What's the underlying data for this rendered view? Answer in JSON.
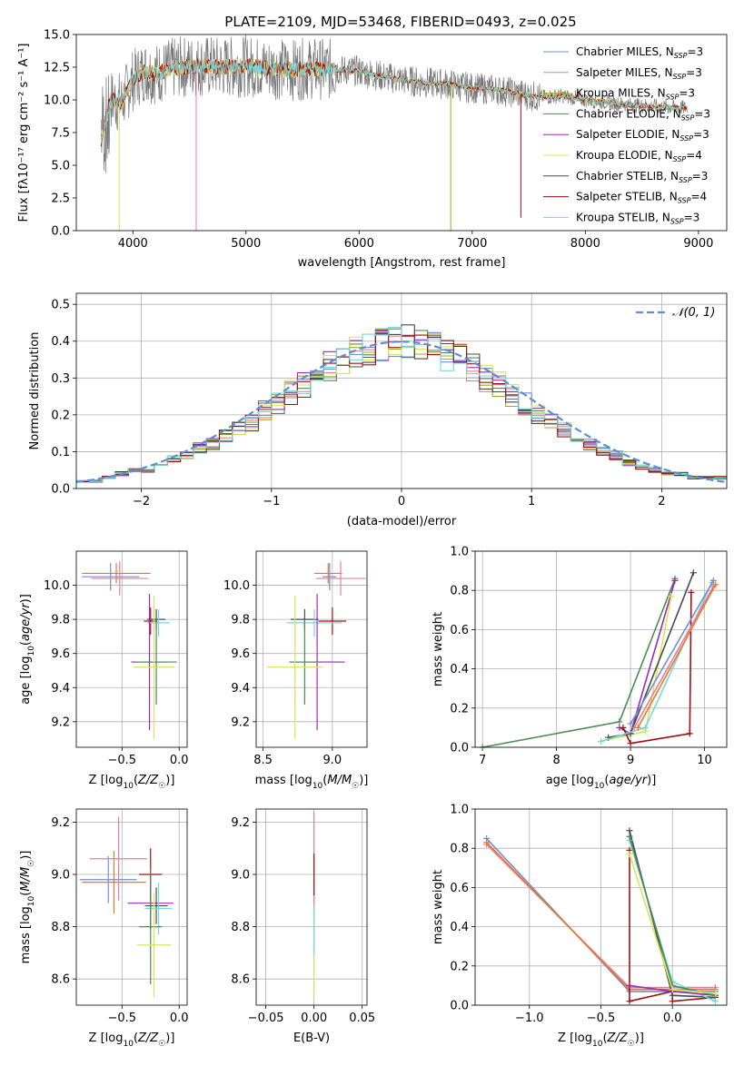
{
  "figure": {
    "title": "PLATE=2109, MJD=53468, FIBERID=0493, z=0.025"
  },
  "colors": {
    "Chabrier MILES": "#6e8fd2",
    "Salpeter MILES": "#e87d9b",
    "Kroupa MILES": "#a5a51e",
    "Chabrier ELODIE": "#4b8c52",
    "Salpeter ELODIE": "#9c2bb0",
    "Kroupa ELODIE": "#d9e35a",
    "Chabrier STELIB": "#4a4a4a",
    "Salpeter STELIB": "#a01010",
    "Kroupa STELIB": "#74d6dc",
    "data": "#777777",
    "orange": "#e8772e",
    "gauss": "#5b8ed6"
  },
  "chart_data": [
    {
      "id": "spectrum",
      "type": "line",
      "xlabel": "wavelength [Angstrom, rest frame]",
      "ylabel": "Flux [f_λ10^-17 erg cm^-2 s^-1 A^-1]",
      "xlim": [
        3500,
        9250
      ],
      "ylim": [
        0,
        15
      ],
      "xticks": [
        "4000",
        "5000",
        "6000",
        "7000",
        "8000",
        "9000"
      ],
      "yticks": [
        "0.0",
        "2.5",
        "5.0",
        "7.5",
        "10.0",
        "12.5",
        "15.0"
      ],
      "legend_position": "top-right",
      "legend": [
        {
          "label": "Chabrier MILES, N_SSP=3",
          "series": "Chabrier MILES"
        },
        {
          "label": "Salpeter MILES, N_SSP=3",
          "series": "Salpeter MILES"
        },
        {
          "label": "Kroupa MILES, N_SSP=3",
          "series": "Kroupa MILES"
        },
        {
          "label": "Chabrier ELODIE, N_SSP=3",
          "series": "Chabrier ELODIE"
        },
        {
          "label": "Salpeter ELODIE, N_SSP=3",
          "series": "Salpeter ELODIE"
        },
        {
          "label": "Kroupa ELODIE, N_SSP=4",
          "series": "Kroupa ELODIE"
        },
        {
          "label": "Chabrier STELIB, N_SSP=3",
          "series": "Chabrier STELIB"
        },
        {
          "label": "Salpeter STELIB, N_SSP=4",
          "series": "Salpeter STELIB"
        },
        {
          "label": "Kroupa STELIB, N_SSP=3",
          "series": "Kroupa STELIB"
        }
      ],
      "continuum": {
        "x": [
          3720,
          3800,
          3900,
          4000,
          4100,
          4200,
          4400,
          4600,
          4800,
          5000,
          5200,
          5400,
          5600,
          5800,
          6000,
          6200,
          6400,
          6600,
          6800,
          7000,
          7200,
          7400,
          7600,
          7800,
          8000,
          8200,
          8400,
          8600,
          8800,
          8900
        ],
        "y": [
          7.0,
          10.0,
          9.8,
          11.5,
          12.2,
          12.0,
          12.5,
          12.6,
          12.5,
          12.6,
          12.4,
          12.3,
          12.4,
          12.3,
          12.2,
          11.8,
          11.5,
          11.3,
          11.2,
          10.9,
          10.8,
          10.5,
          10.2,
          10.3,
          10.0,
          9.8,
          9.6,
          9.5,
          9.4,
          9.4
        ]
      },
      "dips": [
        {
          "x": 4560,
          "y": 0.0,
          "series": "Salpeter MILES"
        },
        {
          "x": 6810,
          "y": 0.0,
          "series": "Kroupa MILES"
        },
        {
          "x": 7430,
          "y": 1.0,
          "series": "Salpeter STELIB"
        },
        {
          "x": 3880,
          "y": 0.0,
          "series": "Kroupa ELODIE"
        }
      ]
    },
    {
      "id": "residuals",
      "type": "line",
      "xlabel": "(data-model)/error",
      "ylabel": "Normed distribution",
      "xlim": [
        -2.5,
        2.5
      ],
      "ylim": [
        0,
        0.53
      ],
      "xticks": [
        "−2",
        "−1",
        "0",
        "1",
        "2"
      ],
      "yticks": [
        "0.0",
        "0.1",
        "0.2",
        "0.3",
        "0.4",
        "0.5"
      ],
      "legend": [
        {
          "label": "𝒩(0, 1)",
          "series": "gauss"
        }
      ],
      "legend_position": "top-right",
      "bin_width": 0.1,
      "x_start": -2.5,
      "base_hist": [
        0.02,
        0.02,
        0.03,
        0.04,
        0.05,
        0.05,
        0.06,
        0.08,
        0.09,
        0.11,
        0.12,
        0.14,
        0.16,
        0.18,
        0.21,
        0.23,
        0.26,
        0.28,
        0.3,
        0.33,
        0.35,
        0.37,
        0.38,
        0.39,
        0.4,
        0.4,
        0.39,
        0.38,
        0.36,
        0.35,
        0.33,
        0.3,
        0.28,
        0.25,
        0.23,
        0.2,
        0.18,
        0.16,
        0.14,
        0.12,
        0.1,
        0.09,
        0.07,
        0.06,
        0.05,
        0.04,
        0.04,
        0.03,
        0.03,
        0.03
      ]
    },
    {
      "id": "age-vs-z",
      "type": "scatter",
      "xlabel": "Z [log10(Z/Z☉)]",
      "ylabel": "age [log10(age/yr)]",
      "xlim": [
        -0.9,
        0.07
      ],
      "ylim": [
        9.05,
        10.2
      ],
      "xticks": [
        "−0.5",
        "0.0"
      ],
      "yticks": [
        "9.2",
        "9.4",
        "9.6",
        "9.8",
        "10.0"
      ],
      "points": [
        {
          "series": "Chabrier MILES",
          "x": -0.6,
          "y": 10.05,
          "xerr": 0.25,
          "yerr": 0.08
        },
        {
          "series": "orange",
          "x": -0.55,
          "y": 10.07,
          "xerr": 0.3,
          "yerr": 0.06
        },
        {
          "series": "Salpeter MILES",
          "x": -0.52,
          "y": 10.04,
          "xerr": 0.25,
          "yerr": 0.1
        },
        {
          "series": "Salpeter STELIB",
          "x": -0.25,
          "y": 9.79,
          "xerr": 0.06,
          "yerr": 0.08
        },
        {
          "series": "Chabrier STELIB",
          "x": -0.2,
          "y": 9.8,
          "xerr": 0.08,
          "yerr": 0.06
        },
        {
          "series": "Kroupa STELIB",
          "x": -0.18,
          "y": 9.78,
          "xerr": 0.1,
          "yerr": 0.08
        },
        {
          "series": "Salpeter ELODIE",
          "x": -0.26,
          "y": 9.55,
          "xerr": 0.16,
          "yerr": 0.4
        },
        {
          "series": "Chabrier ELODIE",
          "x": -0.2,
          "y": 9.55,
          "xerr": 0.18,
          "yerr": 0.25
        },
        {
          "series": "Kroupa ELODIE",
          "x": -0.22,
          "y": 9.52,
          "xerr": 0.18,
          "yerr": 0.42
        }
      ]
    },
    {
      "id": "age-vs-mass",
      "type": "scatter",
      "xlabel": "mass [log10(M/M☉)]",
      "ylabel": "",
      "xlim": [
        8.45,
        9.25
      ],
      "ylim": [
        9.05,
        10.2
      ],
      "xticks": [
        "8.5",
        "9.0"
      ],
      "yticks": [
        "9.2",
        "9.4",
        "9.6",
        "9.8",
        "10.0"
      ],
      "points": [
        {
          "series": "Chabrier MILES",
          "x": 8.98,
          "y": 10.05,
          "xerr": 0.05,
          "yerr": 0.08
        },
        {
          "series": "orange",
          "x": 8.97,
          "y": 10.07,
          "xerr": 0.1,
          "yerr": 0.06
        },
        {
          "series": "Salpeter MILES",
          "x": 9.06,
          "y": 10.04,
          "xerr": 0.18,
          "yerr": 0.1
        },
        {
          "series": "Salpeter STELIB",
          "x": 9.0,
          "y": 9.79,
          "xerr": 0.1,
          "yerr": 0.08
        },
        {
          "series": "Chabrier STELIB",
          "x": 8.8,
          "y": 9.8,
          "xerr": 0.1,
          "yerr": 0.06
        },
        {
          "series": "Kroupa STELIB",
          "x": 8.87,
          "y": 9.78,
          "xerr": 0.2,
          "yerr": 0.08
        },
        {
          "series": "Salpeter ELODIE",
          "x": 8.89,
          "y": 9.55,
          "xerr": 0.2,
          "yerr": 0.4
        },
        {
          "series": "Chabrier ELODIE",
          "x": 8.8,
          "y": 9.55,
          "xerr": 0.1,
          "yerr": 0.25
        },
        {
          "series": "Kroupa ELODIE",
          "x": 8.73,
          "y": 9.52,
          "xerr": 0.2,
          "yerr": 0.42
        }
      ]
    },
    {
      "id": "weight-vs-age",
      "type": "line",
      "xlabel": "age [log10(age/yr)]",
      "ylabel": "mass weight",
      "xlim": [
        6.9,
        10.3
      ],
      "ylim": [
        0,
        1.0
      ],
      "xticks": [
        "7",
        "8",
        "9",
        "10"
      ],
      "yticks": [
        "0.0",
        "0.2",
        "0.4",
        "0.6",
        "0.8",
        "1.0"
      ],
      "series": [
        {
          "name": "Chabrier ELODIE",
          "x": [
            7.0,
            8.85,
            9.6
          ],
          "y": [
            0.0,
            0.13,
            0.86
          ]
        },
        {
          "name": "Salpeter ELODIE",
          "x": [
            8.85,
            9.0,
            9.6
          ],
          "y": [
            0.1,
            0.07,
            0.85
          ]
        },
        {
          "name": "Kroupa ELODIE",
          "x": [
            8.6,
            9.2,
            9.55
          ],
          "y": [
            0.03,
            0.08,
            0.77
          ]
        },
        {
          "name": "Chabrier STELIB",
          "x": [
            8.7,
            9.0,
            9.85
          ],
          "y": [
            0.05,
            0.07,
            0.89
          ]
        },
        {
          "name": "Salpeter STELIB",
          "x": [
            8.9,
            9.0,
            9.8,
            9.82
          ],
          "y": [
            0.1,
            0.02,
            0.07,
            0.79
          ]
        },
        {
          "name": "Kroupa STELIB",
          "x": [
            8.6,
            9.2,
            10.1
          ],
          "y": [
            0.03,
            0.1,
            0.84
          ]
        },
        {
          "name": "Chabrier MILES",
          "x": [
            9.0,
            10.12
          ],
          "y": [
            0.12,
            0.85
          ]
        },
        {
          "name": "Salpeter MILES",
          "x": [
            9.05,
            10.12
          ],
          "y": [
            0.1,
            0.82
          ]
        },
        {
          "name": "orange",
          "x": [
            9.1,
            10.15
          ],
          "y": [
            0.1,
            0.83
          ]
        }
      ]
    },
    {
      "id": "mass-vs-z",
      "type": "scatter",
      "xlabel": "Z [log10(Z/Z☉)]",
      "ylabel": "mass [log10(M/M☉)]",
      "xlim": [
        -0.9,
        0.07
      ],
      "ylim": [
        8.5,
        9.25
      ],
      "xticks": [
        "−0.5",
        "0.0"
      ],
      "yticks": [
        "8.6",
        "8.8",
        "9.0",
        "9.2"
      ],
      "points": [
        {
          "series": "Chabrier MILES",
          "x": -0.62,
          "y": 8.98,
          "xerr": 0.25,
          "yerr": 0.09
        },
        {
          "series": "orange",
          "x": -0.57,
          "y": 8.97,
          "xerr": 0.28,
          "yerr": 0.12
        },
        {
          "series": "Salpeter MILES",
          "x": -0.53,
          "y": 9.06,
          "xerr": 0.25,
          "yerr": 0.16
        },
        {
          "series": "Salpeter STELIB",
          "x": -0.25,
          "y": 9.0,
          "xerr": 0.1,
          "yerr": 0.1
        },
        {
          "series": "Salpeter ELODIE",
          "x": -0.25,
          "y": 8.89,
          "xerr": 0.2,
          "yerr": 0.1
        },
        {
          "series": "Chabrier STELIB",
          "x": -0.2,
          "y": 8.88,
          "xerr": 0.1,
          "yerr": 0.07
        },
        {
          "series": "Kroupa STELIB",
          "x": -0.18,
          "y": 8.87,
          "xerr": 0.12,
          "yerr": 0.1
        },
        {
          "series": "Chabrier ELODIE",
          "x": -0.25,
          "y": 8.8,
          "xerr": 0.1,
          "yerr": 0.22
        },
        {
          "series": "Kroupa ELODIE",
          "x": -0.22,
          "y": 8.73,
          "xerr": 0.15,
          "yerr": 0.2
        }
      ]
    },
    {
      "id": "mass-vs-ebv",
      "type": "scatter",
      "xlabel": "E(B-V)",
      "ylabel": "",
      "xlim": [
        -0.06,
        0.055
      ],
      "ylim": [
        8.5,
        9.25
      ],
      "xticks": [
        "−0.05",
        "0.00",
        "0.05"
      ],
      "yticks": [
        "8.6",
        "8.8",
        "9.0",
        "9.2"
      ],
      "points": [
        {
          "series": "Kroupa ELODIE",
          "x": 0.0,
          "y": 8.73,
          "xerr": 0.0,
          "yerr": 0.2
        },
        {
          "series": "Kroupa STELIB",
          "x": 0.0,
          "y": 8.87,
          "xerr": 0.0,
          "yerr": 0.18
        },
        {
          "series": "Salpeter MILES",
          "x": 0.0,
          "y": 9.06,
          "xerr": 0.0,
          "yerr": 0.18
        },
        {
          "series": "Salpeter STELIB",
          "x": 0.0,
          "y": 9.0,
          "xerr": 0.0,
          "yerr": 0.08
        }
      ]
    },
    {
      "id": "weight-vs-z",
      "type": "line",
      "xlabel": "Z [log10(Z/Z☉)]",
      "ylabel": "mass weight",
      "xlim": [
        -1.38,
        0.38
      ],
      "ylim": [
        0,
        1.0
      ],
      "xticks": [
        "−1.0",
        "−0.5",
        "0.0"
      ],
      "yticks": [
        "0.0",
        "0.2",
        "0.4",
        "0.6",
        "0.8",
        "1.0"
      ],
      "series": [
        {
          "name": "Chabrier MILES",
          "x": [
            -1.3,
            -0.3,
            0.3
          ],
          "y": [
            0.85,
            0.07,
            0.07
          ]
        },
        {
          "name": "Salpeter MILES",
          "x": [
            -1.3,
            -0.3,
            0.3
          ],
          "y": [
            0.82,
            0.09,
            0.09
          ]
        },
        {
          "name": "orange",
          "x": [
            -1.3,
            -0.3,
            0.3
          ],
          "y": [
            0.83,
            0.08,
            0.08
          ]
        },
        {
          "name": "Salpeter STELIB",
          "x": [
            -0.3,
            -0.3,
            0.0,
            0.0,
            0.3
          ],
          "y": [
            0.79,
            0.02,
            0.07,
            0.02,
            0.04
          ]
        },
        {
          "name": "Chabrier STELIB",
          "x": [
            -0.3,
            0.0,
            0.3
          ],
          "y": [
            0.89,
            0.05,
            0.04
          ]
        },
        {
          "name": "Kroupa STELIB",
          "x": [
            -0.3,
            0.0,
            0.3
          ],
          "y": [
            0.84,
            0.12,
            0.02
          ]
        },
        {
          "name": "Salpeter ELODIE",
          "x": [
            -0.3,
            0.0,
            0.3
          ],
          "y": [
            0.1,
            0.07,
            0.05
          ]
        },
        {
          "name": "Chabrier ELODIE",
          "x": [
            -0.3,
            0.0,
            0.3
          ],
          "y": [
            0.86,
            0.1,
            0.05
          ]
        },
        {
          "name": "Kroupa ELODIE",
          "x": [
            -0.3,
            0.0,
            0.3
          ],
          "y": [
            0.77,
            0.08,
            0.06
          ]
        }
      ]
    }
  ]
}
